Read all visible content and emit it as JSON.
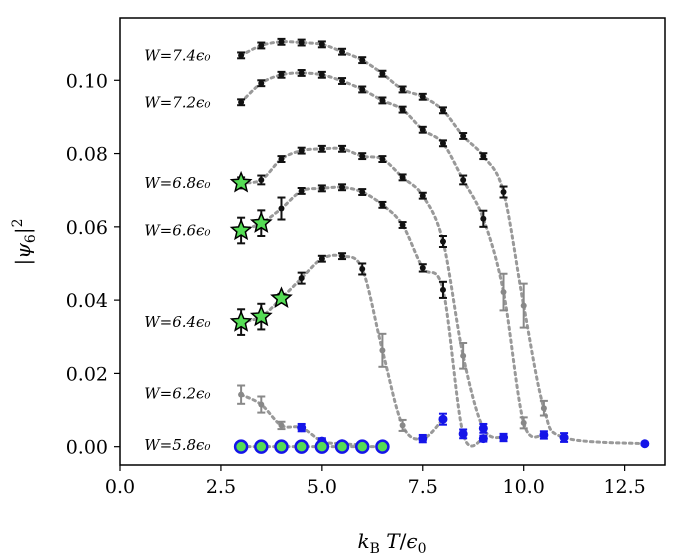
{
  "chart_data": {
    "type": "scatter",
    "title": "",
    "xlabel": "k_B T/ϵ₀",
    "ylabel": "|ψ₆|²",
    "xlim": [
      0,
      13.5
    ],
    "ylim": [
      -0.005,
      0.117
    ],
    "xticks": [
      0,
      2.5,
      5,
      7.5,
      10,
      12.5
    ],
    "xtick_labels": [
      "0.0",
      "2.5",
      "5.0",
      "7.5",
      "10.0",
      "12.5"
    ],
    "yticks": [
      0,
      0.02,
      0.04,
      0.06,
      0.08,
      0.1
    ],
    "ytick_labels": [
      "0.00",
      "0.02",
      "0.04",
      "0.06",
      "0.08",
      "0.10"
    ],
    "grid": false,
    "colors": {
      "ordered": "#111111",
      "transition": "#888888",
      "disordered": "#1515e8",
      "star_fill": "#55dd55",
      "curve": "#999999"
    },
    "series": [
      {
        "name": "W = 7.4ϵ₀",
        "label_text": "W=7.4ϵ₀",
        "label_at": [
          0.55,
          0.1068
        ],
        "points": [
          {
            "x": 3.0,
            "y": 0.1068,
            "err": 0.0008,
            "style": "ordered"
          },
          {
            "x": 3.5,
            "y": 0.1095,
            "err": 0.0008,
            "style": "ordered"
          },
          {
            "x": 4.0,
            "y": 0.1105,
            "err": 0.0008,
            "style": "ordered"
          },
          {
            "x": 4.5,
            "y": 0.1103,
            "err": 0.0008,
            "style": "ordered"
          },
          {
            "x": 5.0,
            "y": 0.1098,
            "err": 0.0008,
            "style": "ordered"
          },
          {
            "x": 5.5,
            "y": 0.1078,
            "err": 0.0008,
            "style": "ordered"
          },
          {
            "x": 6.0,
            "y": 0.1055,
            "err": 0.0008,
            "style": "ordered"
          },
          {
            "x": 6.5,
            "y": 0.1018,
            "err": 0.0008,
            "style": "ordered"
          },
          {
            "x": 7.0,
            "y": 0.0975,
            "err": 0.0008,
            "style": "ordered"
          },
          {
            "x": 7.5,
            "y": 0.0955,
            "err": 0.0008,
            "style": "ordered"
          },
          {
            "x": 8.0,
            "y": 0.0918,
            "err": 0.0008,
            "style": "ordered"
          },
          {
            "x": 8.5,
            "y": 0.0848,
            "err": 0.0008,
            "style": "ordered"
          },
          {
            "x": 9.0,
            "y": 0.0793,
            "err": 0.0008,
            "style": "ordered"
          },
          {
            "x": 9.5,
            "y": 0.0695,
            "err": 0.0015,
            "style": "ordered"
          },
          {
            "x": 10.0,
            "y": 0.0385,
            "err": 0.006,
            "style": "transition"
          },
          {
            "x": 10.5,
            "y": 0.0105,
            "err": 0.002,
            "style": "transition"
          },
          {
            "x": 11.0,
            "y": 0.0025,
            "err": 0.0012,
            "style": "disordered"
          },
          {
            "x": 13.0,
            "y": 0.0008,
            "err": 0.0003,
            "style": "disordered"
          }
        ]
      },
      {
        "name": "W = 7.2ϵ₀",
        "label_text": "W=7.2ϵ₀",
        "label_at": [
          0.55,
          0.094
        ],
        "points": [
          {
            "x": 3.0,
            "y": 0.094,
            "err": 0.0008,
            "style": "ordered"
          },
          {
            "x": 3.5,
            "y": 0.0992,
            "err": 0.0008,
            "style": "ordered"
          },
          {
            "x": 4.0,
            "y": 0.1015,
            "err": 0.0008,
            "style": "ordered"
          },
          {
            "x": 4.5,
            "y": 0.102,
            "err": 0.0008,
            "style": "ordered"
          },
          {
            "x": 5.0,
            "y": 0.1015,
            "err": 0.0008,
            "style": "ordered"
          },
          {
            "x": 5.5,
            "y": 0.0998,
            "err": 0.0008,
            "style": "ordered"
          },
          {
            "x": 6.0,
            "y": 0.0975,
            "err": 0.0008,
            "style": "ordered"
          },
          {
            "x": 6.5,
            "y": 0.0945,
            "err": 0.0008,
            "style": "ordered"
          },
          {
            "x": 7.0,
            "y": 0.092,
            "err": 0.0008,
            "style": "ordered"
          },
          {
            "x": 7.5,
            "y": 0.0865,
            "err": 0.0008,
            "style": "ordered"
          },
          {
            "x": 8.0,
            "y": 0.0828,
            "err": 0.0008,
            "style": "ordered"
          },
          {
            "x": 8.5,
            "y": 0.0728,
            "err": 0.0012,
            "style": "ordered"
          },
          {
            "x": 9.0,
            "y": 0.0622,
            "err": 0.0022,
            "style": "ordered"
          },
          {
            "x": 9.5,
            "y": 0.0422,
            "err": 0.005,
            "style": "transition"
          },
          {
            "x": 10.0,
            "y": 0.0065,
            "err": 0.0015,
            "style": "transition"
          },
          {
            "x": 10.5,
            "y": 0.0032,
            "err": 0.001,
            "style": "disordered"
          }
        ]
      },
      {
        "name": "W = 6.8ϵ₀",
        "label_text": "W=6.8ϵ₀",
        "label_at": [
          0.55,
          0.072
        ],
        "points": [
          {
            "x": 3.0,
            "y": 0.072,
            "err": 0.0015,
            "style": "star"
          },
          {
            "x": 3.5,
            "y": 0.0728,
            "err": 0.0012,
            "style": "ordered"
          },
          {
            "x": 4.0,
            "y": 0.0785,
            "err": 0.0008,
            "style": "ordered"
          },
          {
            "x": 4.5,
            "y": 0.0808,
            "err": 0.0008,
            "style": "ordered"
          },
          {
            "x": 5.0,
            "y": 0.0813,
            "err": 0.0008,
            "style": "ordered"
          },
          {
            "x": 5.5,
            "y": 0.0813,
            "err": 0.0008,
            "style": "ordered"
          },
          {
            "x": 6.0,
            "y": 0.0793,
            "err": 0.0008,
            "style": "ordered"
          },
          {
            "x": 6.5,
            "y": 0.0785,
            "err": 0.0008,
            "style": "ordered"
          },
          {
            "x": 7.0,
            "y": 0.0735,
            "err": 0.0008,
            "style": "ordered"
          },
          {
            "x": 7.5,
            "y": 0.0685,
            "err": 0.0008,
            "style": "ordered"
          },
          {
            "x": 8.0,
            "y": 0.056,
            "err": 0.0015,
            "style": "ordered"
          },
          {
            "x": 8.5,
            "y": 0.0248,
            "err": 0.0035,
            "style": "transition"
          },
          {
            "x": 9.0,
            "y": 0.005,
            "err": 0.0012,
            "style": "disordered"
          },
          {
            "x": 9.5,
            "y": 0.0025,
            "err": 0.001,
            "style": "disordered"
          }
        ]
      },
      {
        "name": "W = 6.6ϵ₀",
        "label_text": "W=6.6ϵ₀",
        "label_at": [
          0.55,
          0.059
        ],
        "points": [
          {
            "x": 3.0,
            "y": 0.059,
            "err": 0.0035,
            "style": "star"
          },
          {
            "x": 3.5,
            "y": 0.061,
            "err": 0.0035,
            "style": "star"
          },
          {
            "x": 4.0,
            "y": 0.065,
            "err": 0.003,
            "style": "ordered"
          },
          {
            "x": 4.5,
            "y": 0.0698,
            "err": 0.0008,
            "style": "ordered"
          },
          {
            "x": 5.0,
            "y": 0.0705,
            "err": 0.0008,
            "style": "ordered"
          },
          {
            "x": 5.5,
            "y": 0.0708,
            "err": 0.0008,
            "style": "ordered"
          },
          {
            "x": 6.0,
            "y": 0.0695,
            "err": 0.0008,
            "style": "ordered"
          },
          {
            "x": 6.5,
            "y": 0.066,
            "err": 0.0008,
            "style": "ordered"
          },
          {
            "x": 7.0,
            "y": 0.0605,
            "err": 0.0008,
            "style": "ordered"
          },
          {
            "x": 7.5,
            "y": 0.0488,
            "err": 0.001,
            "style": "ordered"
          },
          {
            "x": 8.0,
            "y": 0.0428,
            "err": 0.0022,
            "style": "ordered"
          },
          {
            "x": 8.5,
            "y": 0.0035,
            "err": 0.0012,
            "style": "disordered"
          },
          {
            "x": 9.0,
            "y": 0.0022,
            "err": 0.0008,
            "style": "disordered"
          }
        ]
      },
      {
        "name": "W = 6.4ϵ₀",
        "label_text": "W=6.4ϵ₀",
        "label_at": [
          0.55,
          0.034
        ],
        "points": [
          {
            "x": 3.0,
            "y": 0.034,
            "err": 0.0035,
            "style": "star"
          },
          {
            "x": 3.5,
            "y": 0.0355,
            "err": 0.0035,
            "style": "star"
          },
          {
            "x": 4.0,
            "y": 0.0405,
            "err": 0.0012,
            "style": "star"
          },
          {
            "x": 4.5,
            "y": 0.046,
            "err": 0.0015,
            "style": "ordered"
          },
          {
            "x": 5.0,
            "y": 0.0513,
            "err": 0.0008,
            "style": "ordered"
          },
          {
            "x": 5.5,
            "y": 0.052,
            "err": 0.0008,
            "style": "ordered"
          },
          {
            "x": 6.0,
            "y": 0.0485,
            "err": 0.0015,
            "style": "ordered"
          },
          {
            "x": 6.5,
            "y": 0.0263,
            "err": 0.0045,
            "style": "transition"
          },
          {
            "x": 7.0,
            "y": 0.0058,
            "err": 0.0015,
            "style": "transition"
          },
          {
            "x": 7.5,
            "y": 0.0022,
            "err": 0.001,
            "style": "disordered"
          },
          {
            "x": 8.0,
            "y": 0.0075,
            "err": 0.0015,
            "style": "disordered"
          }
        ]
      },
      {
        "name": "W = 6.2ϵ₀",
        "label_text": "W=6.2ϵ₀",
        "label_at": [
          0.55,
          0.0145
        ],
        "points": [
          {
            "x": 3.0,
            "y": 0.0142,
            "err": 0.0025,
            "style": "transition"
          },
          {
            "x": 3.5,
            "y": 0.0115,
            "err": 0.0022,
            "style": "transition"
          },
          {
            "x": 4.0,
            "y": 0.0058,
            "err": 0.001,
            "style": "transition"
          },
          {
            "x": 4.5,
            "y": 0.0052,
            "err": 0.001,
            "style": "disordered"
          },
          {
            "x": 5.0,
            "y": 0.0015,
            "err": 0.0008,
            "style": "disordered"
          },
          {
            "x": 5.5,
            "y": 0.0008,
            "err": 0.0005,
            "style": "disordered"
          },
          {
            "x": 6.0,
            "y": 0.0005,
            "err": 0.0004,
            "style": "disordered"
          }
        ]
      },
      {
        "name": "W = 5.8ϵ₀",
        "label_text": "W=5.8ϵ₀",
        "label_at": [
          0.55,
          0.0005
        ],
        "points": [
          {
            "x": 3.0,
            "y": 0.0,
            "err": 0.0004,
            "style": "disordered_green"
          },
          {
            "x": 3.5,
            "y": 0.0,
            "err": 0.0004,
            "style": "disordered_green"
          },
          {
            "x": 4.0,
            "y": 0.0,
            "err": 0.0004,
            "style": "disordered_green"
          },
          {
            "x": 4.5,
            "y": 0.0,
            "err": 0.0004,
            "style": "disordered_green"
          },
          {
            "x": 5.0,
            "y": 0.0,
            "err": 0.0004,
            "style": "disordered_green"
          },
          {
            "x": 5.5,
            "y": 0.0,
            "err": 0.0004,
            "style": "disordered_green"
          },
          {
            "x": 6.0,
            "y": 0.0,
            "err": 0.0004,
            "style": "disordered_green"
          },
          {
            "x": 6.5,
            "y": 0.0,
            "err": 0.0004,
            "style": "disordered_green"
          }
        ]
      }
    ]
  }
}
